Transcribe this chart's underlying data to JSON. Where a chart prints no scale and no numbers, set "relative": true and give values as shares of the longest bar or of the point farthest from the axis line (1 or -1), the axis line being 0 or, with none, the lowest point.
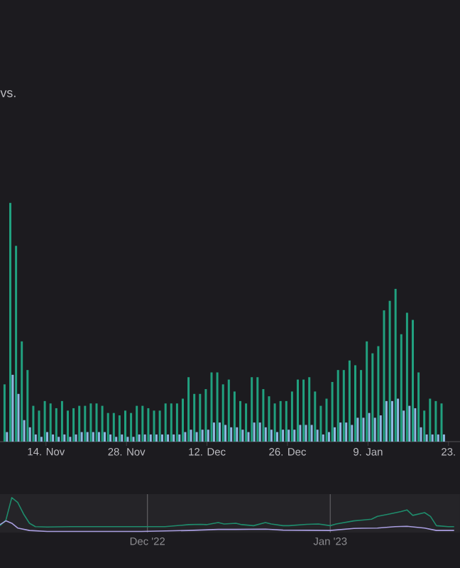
{
  "chart_data": [
    {
      "type": "bar",
      "subtitle": "vs.",
      "relative": true,
      "x": [
        "2022-11-07",
        "2022-11-08",
        "2022-11-09",
        "2022-11-10",
        "2022-11-11",
        "2022-11-12",
        "2022-11-13",
        "2022-11-14",
        "2022-11-15",
        "2022-11-16",
        "2022-11-17",
        "2022-11-18",
        "2022-11-19",
        "2022-11-20",
        "2022-11-21",
        "2022-11-22",
        "2022-11-23",
        "2022-11-24",
        "2022-11-25",
        "2022-11-26",
        "2022-11-27",
        "2022-11-28",
        "2022-11-29",
        "2022-11-30",
        "2022-12-01",
        "2022-12-02",
        "2022-12-03",
        "2022-12-04",
        "2022-12-05",
        "2022-12-06",
        "2022-12-07",
        "2022-12-08",
        "2022-12-09",
        "2022-12-10",
        "2022-12-11",
        "2022-12-12",
        "2022-12-13",
        "2022-12-14",
        "2022-12-15",
        "2022-12-16",
        "2022-12-17",
        "2022-12-18",
        "2022-12-19",
        "2022-12-20",
        "2022-12-21",
        "2022-12-22",
        "2022-12-23",
        "2022-12-24",
        "2022-12-25",
        "2022-12-26",
        "2022-12-27",
        "2022-12-28",
        "2022-12-29",
        "2022-12-30",
        "2022-12-31",
        "2023-01-01",
        "2023-01-02",
        "2023-01-03",
        "2023-01-04",
        "2023-01-05",
        "2023-01-06",
        "2023-01-07",
        "2023-01-08",
        "2023-01-09",
        "2023-01-10",
        "2023-01-11",
        "2023-01-12",
        "2023-01-13",
        "2023-01-14",
        "2023-01-15",
        "2023-01-16",
        "2023-01-17",
        "2023-01-18",
        "2023-01-19",
        "2023-01-20",
        "2023-01-21",
        "2023-01-22"
      ],
      "xlim": [
        "2022-11-06",
        "2023-01-25"
      ],
      "xticks": [
        {
          "value": "2022-11-14",
          "label": "14. Nov"
        },
        {
          "value": "2022-11-28",
          "label": "28. Nov"
        },
        {
          "value": "2022-12-12",
          "label": "12. Dec"
        },
        {
          "value": "2022-12-26",
          "label": "26. Dec"
        },
        {
          "value": "2023-01-09",
          "label": "9. Jan"
        },
        {
          "value": "2023-01-23",
          "label": "23."
        }
      ],
      "series": [
        {
          "color": "#21a17f",
          "values": [
            0.24,
            1.0,
            0.82,
            0.42,
            0.3,
            0.15,
            0.13,
            0.17,
            0.16,
            0.14,
            0.17,
            0.13,
            0.14,
            0.15,
            0.15,
            0.16,
            0.16,
            0.15,
            0.12,
            0.12,
            0.11,
            0.13,
            0.12,
            0.15,
            0.15,
            0.14,
            0.13,
            0.13,
            0.16,
            0.16,
            0.16,
            0.18,
            0.27,
            0.2,
            0.2,
            0.22,
            0.29,
            0.29,
            0.24,
            0.26,
            0.21,
            0.17,
            0.16,
            0.27,
            0.27,
            0.22,
            0.19,
            0.16,
            0.17,
            0.17,
            0.21,
            0.26,
            0.26,
            0.27,
            0.21,
            0.15,
            0.18,
            0.25,
            0.3,
            0.3,
            0.34,
            0.32,
            0.3,
            0.42,
            0.37,
            0.4,
            0.55,
            0.59,
            0.64,
            0.45,
            0.54,
            0.51,
            0.29,
            0.13,
            0.18,
            0.17,
            0.16
          ]
        },
        {
          "color": "#8fb8e3",
          "values": [
            0.04,
            0.28,
            0.2,
            0.09,
            0.06,
            0.03,
            0.02,
            0.04,
            0.03,
            0.02,
            0.03,
            0.02,
            0.03,
            0.04,
            0.04,
            0.04,
            0.04,
            0.04,
            0.03,
            0.02,
            0.03,
            0.02,
            0.02,
            0.03,
            0.03,
            0.03,
            0.03,
            0.03,
            0.03,
            0.03,
            0.03,
            0.04,
            0.05,
            0.04,
            0.05,
            0.05,
            0.08,
            0.08,
            0.07,
            0.06,
            0.06,
            0.05,
            0.04,
            0.08,
            0.08,
            0.06,
            0.05,
            0.04,
            0.05,
            0.05,
            0.05,
            0.07,
            0.07,
            0.07,
            0.05,
            0.03,
            0.04,
            0.06,
            0.08,
            0.08,
            0.07,
            0.1,
            0.1,
            0.12,
            0.1,
            0.11,
            0.17,
            0.17,
            0.18,
            0.13,
            0.15,
            0.14,
            0.06,
            0.03,
            0.03,
            0.03,
            0.03
          ]
        }
      ]
    },
    {
      "type": "line",
      "relative": true,
      "grid": "x",
      "xlim": [
        "2022-11-06",
        "2023-01-23"
      ],
      "xticks": [
        {
          "value": "2022-12-01",
          "label": "Dec '22"
        },
        {
          "value": "2023-01-01",
          "label": "Jan '23"
        }
      ],
      "series": [
        {
          "color": "#1f8c6c",
          "x": [
            "2022-11-06",
            "2022-11-07",
            "2022-11-08",
            "2022-11-09",
            "2022-11-10",
            "2022-11-11",
            "2022-11-12",
            "2022-11-14",
            "2022-11-18",
            "2022-11-26",
            "2022-12-04",
            "2022-12-08",
            "2022-12-10",
            "2022-12-11",
            "2022-12-13",
            "2022-12-14",
            "2022-12-16",
            "2022-12-17",
            "2022-12-19",
            "2022-12-21",
            "2022-12-22",
            "2022-12-24",
            "2022-12-25",
            "2022-12-28",
            "2022-12-30",
            "2023-01-01",
            "2023-01-02",
            "2023-01-05",
            "2023-01-08",
            "2023-01-09",
            "2023-01-11",
            "2023-01-13",
            "2023-01-14",
            "2023-01-15",
            "2023-01-17",
            "2023-01-18",
            "2023-01-19",
            "2023-01-21",
            "2023-01-22"
          ],
          "values": [
            0.18,
            0.34,
            1.0,
            0.86,
            0.52,
            0.25,
            0.15,
            0.14,
            0.15,
            0.15,
            0.15,
            0.21,
            0.22,
            0.21,
            0.27,
            0.23,
            0.25,
            0.21,
            0.18,
            0.27,
            0.23,
            0.18,
            0.18,
            0.22,
            0.23,
            0.18,
            0.23,
            0.32,
            0.37,
            0.45,
            0.52,
            0.59,
            0.64,
            0.48,
            0.56,
            0.45,
            0.18,
            0.15,
            0.15
          ]
        },
        {
          "color": "#a99ee0",
          "x": [
            "2022-11-06",
            "2022-11-07",
            "2022-11-08",
            "2022-11-09",
            "2022-11-11",
            "2022-11-14",
            "2022-11-22",
            "2022-11-30",
            "2022-12-08",
            "2022-12-13",
            "2022-12-16",
            "2022-12-21",
            "2022-12-24",
            "2023-01-01",
            "2023-01-05",
            "2023-01-09",
            "2023-01-12",
            "2023-01-14",
            "2023-01-17",
            "2023-01-19",
            "2023-01-22"
          ],
          "values": [
            0.21,
            0.32,
            0.25,
            0.11,
            0.04,
            0.01,
            0.01,
            0.01,
            0.04,
            0.07,
            0.07,
            0.08,
            0.05,
            0.04,
            0.1,
            0.11,
            0.15,
            0.16,
            0.11,
            0.04,
            0.04
          ]
        }
      ]
    }
  ]
}
